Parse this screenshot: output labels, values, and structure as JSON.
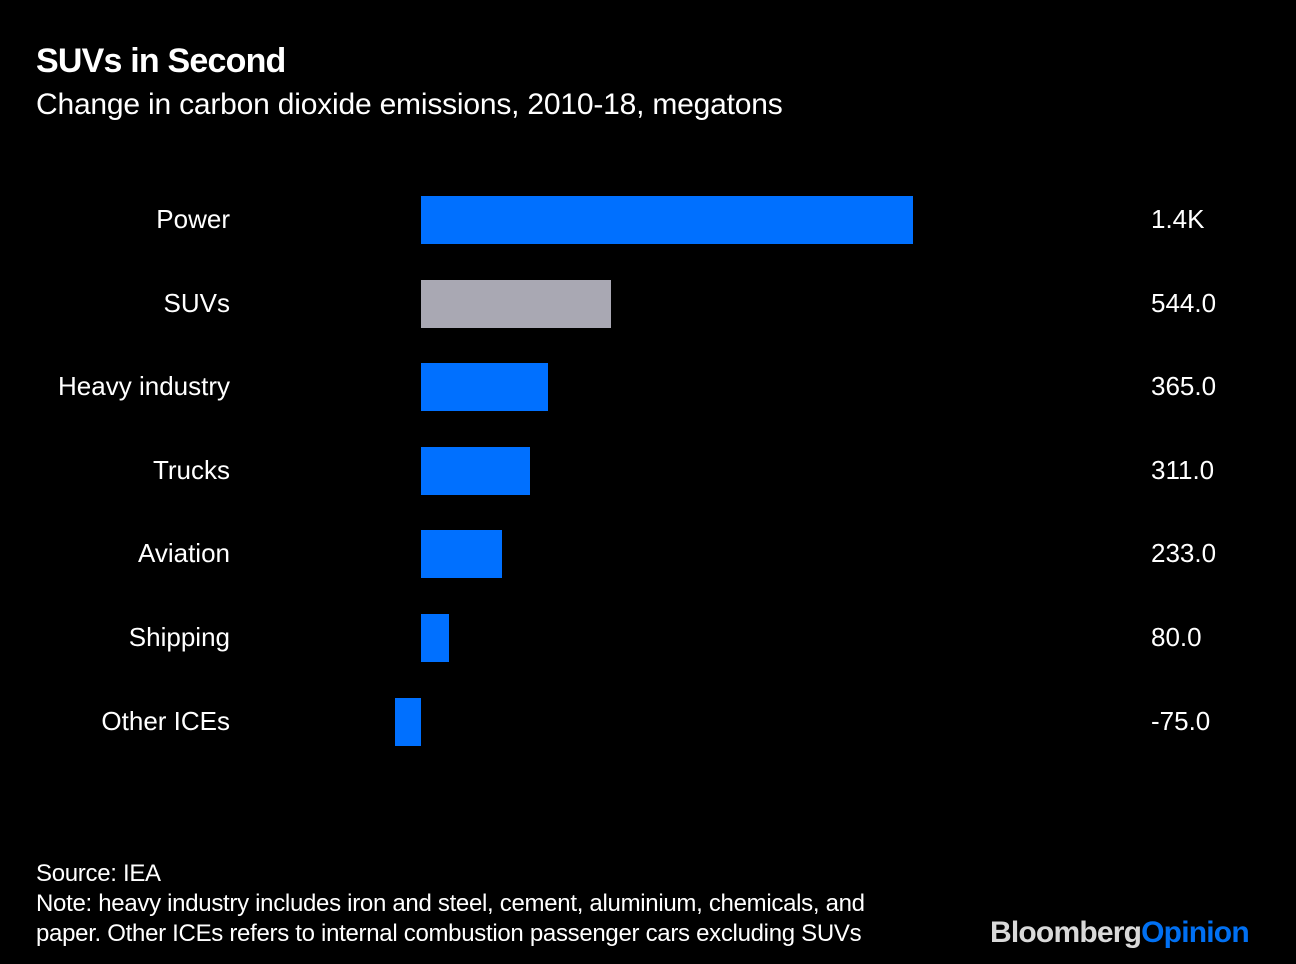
{
  "chart_data": {
    "type": "bar",
    "orientation": "horizontal",
    "title": "SUVs in Second",
    "subtitle": "Change in carbon dioxide emissions, 2010-18, megatons",
    "categories": [
      "Power",
      "SUVs",
      "Heavy industry",
      "Trucks",
      "Aviation",
      "Shipping",
      "Other ICEs"
    ],
    "values": [
      1409,
      544,
      365,
      311,
      233,
      80,
      -75
    ],
    "value_labels": [
      "1.4K",
      "544.0",
      "365.0",
      "311.0",
      "233.0",
      "80.0",
      "-75.0"
    ],
    "highlight_index": 1,
    "colors": {
      "default": "#0070ff",
      "highlight": "#a9a8b3"
    },
    "xlim": [
      -75,
      1409
    ],
    "grid": false,
    "xlabel": "",
    "ylabel": ""
  },
  "footer": {
    "source": "Source: IEA",
    "note_line1": "Note: heavy industry includes iron and steel, cement, aluminium, chemicals, and",
    "note_line2": "paper. Other ICEs refers to internal combustion passenger cars excluding SUVs"
  },
  "logo": {
    "part1": "Bloomberg",
    "part2": "Opinion"
  }
}
